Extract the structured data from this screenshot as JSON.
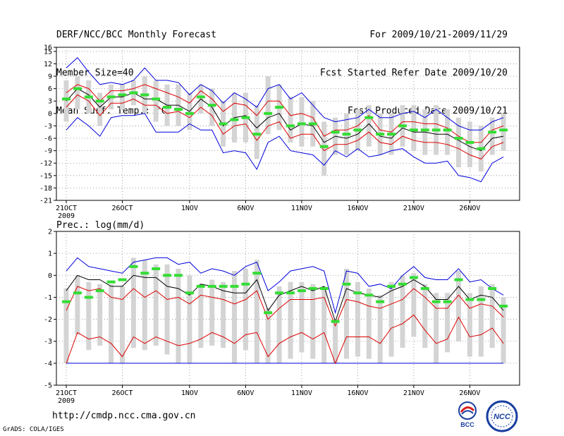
{
  "header": {
    "left": [
      "DERF/NCC/BCC Monthly Forecast",
      "Member Size=40",
      "Mean Surf. Temp.: °C"
    ],
    "right": [
      "For 2009/10/21-2009/11/29",
      "Fcst Started Refer Date 2009/10/20",
      "Fcst Produced Date 2009/10/21"
    ]
  },
  "footer": {
    "url": "http://cmdp.ncc.cma.gov.cn",
    "credit": "GrADS: COLA/IGES"
  },
  "logos": {
    "bcc_text": "BCC",
    "ncc_text": "NCC"
  },
  "colors": {
    "envelope": "#0000dd",
    "spread": "#dd0000",
    "mean": "#000000",
    "obs": "#33dd33",
    "box": "#d4d4d4",
    "grid": "#888888"
  },
  "chart_data": [
    {
      "type": "box-line",
      "title": "Mean Surf. Temp.: °C",
      "ylim": [
        -21,
        16
      ],
      "yticks": [
        16,
        15,
        12,
        9,
        6,
        3,
        0,
        -3,
        -6,
        -9,
        -12,
        -15,
        -18,
        -21
      ],
      "xticks": [
        {
          "day": 0,
          "label": "21OCT"
        },
        {
          "day": 5,
          "label": "26OCT"
        },
        {
          "day": 11,
          "label": "1NOV"
        },
        {
          "day": 16,
          "label": "6NOV"
        },
        {
          "day": 21,
          "label": "11NOV"
        },
        {
          "day": 26,
          "label": "16NOV"
        },
        {
          "day": 31,
          "label": "21NOV"
        },
        {
          "day": 36,
          "label": "26NOV"
        }
      ],
      "year_label": "2009",
      "series": {
        "max": [
          11,
          13.5,
          10,
          7,
          7.5,
          7,
          8,
          11,
          8,
          8,
          7.5,
          4.5,
          7,
          5.5,
          2.5,
          5,
          3.5,
          1.5,
          6,
          7,
          3.5,
          5,
          2,
          -1,
          -2,
          -1.5,
          -1,
          1,
          -1,
          -1,
          0,
          0.5,
          -1,
          1,
          -1,
          -3,
          -4,
          -4,
          -2,
          -1
        ],
        "p75": [
          5,
          7,
          6,
          3,
          5.5,
          5.5,
          6,
          7,
          6,
          5,
          4,
          2.5,
          5.5,
          3.5,
          0.5,
          2.5,
          2,
          -0.5,
          3,
          3,
          -0.5,
          0,
          -1,
          -5.5,
          -4,
          -4,
          -3,
          -0.5,
          -4,
          -4.5,
          -2,
          -2,
          -2.5,
          -2.5,
          -3.5,
          -5.5,
          -7,
          -7,
          -4,
          -3
        ],
        "mean": [
          3,
          6,
          4.5,
          1.5,
          4,
          4,
          5,
          3.5,
          3.5,
          2,
          2,
          0.5,
          3.5,
          1.5,
          -3,
          -1,
          -0.5,
          -3.5,
          -1,
          0,
          -4,
          -2.5,
          -3,
          -7,
          -5.5,
          -6,
          -5,
          -2.5,
          -5.5,
          -6,
          -3.5,
          -4.5,
          -4.5,
          -5,
          -5,
          -6.5,
          -8,
          -9,
          -6,
          -5.5
        ],
        "p25": [
          1.5,
          4.5,
          3,
          -0.5,
          2.5,
          2.5,
          3.5,
          2,
          2,
          0,
          0.5,
          -1,
          1.5,
          -0.5,
          -5,
          -3,
          -2.5,
          -6.5,
          -3,
          -2,
          -6,
          -5,
          -5,
          -9,
          -7.5,
          -7.5,
          -6.5,
          -4.5,
          -7,
          -7.5,
          -5.5,
          -6.5,
          -7,
          -7,
          -7.5,
          -8.5,
          -10,
          -11,
          -8,
          -7
        ],
        "min": [
          -4,
          -1,
          -3,
          -5.5,
          -1,
          -0.5,
          -0.5,
          0,
          -4.5,
          -4.5,
          -4.5,
          -2.5,
          -4,
          -4,
          -9.5,
          -9,
          -9.5,
          -13.5,
          -7,
          -5.5,
          -9,
          -9.5,
          -10,
          -12.5,
          -9,
          -10.5,
          -8.5,
          -10.5,
          -10,
          -9,
          -8.5,
          -10.5,
          -12,
          -12,
          -11.5,
          -15,
          -15.5,
          -16.5,
          -12,
          -10.5
        ],
        "obs": [
          3.5,
          6,
          4,
          3,
          4,
          4.5,
          5,
          4.5,
          3.5,
          1.5,
          1,
          0,
          4,
          2,
          -2.5,
          -1.5,
          -1,
          -5,
          0,
          1.5,
          -3,
          -2.5,
          -2.5,
          -8,
          -4.5,
          -5,
          -4,
          -1,
          -5,
          -5,
          -3,
          -4,
          -4,
          -4,
          -4,
          -6,
          -7,
          -8.5,
          -4.5,
          -4
        ],
        "box_top": [
          8,
          9,
          8,
          5,
          7,
          7,
          8,
          9,
          8,
          7,
          7,
          5,
          7,
          6,
          3,
          5,
          5,
          2,
          9,
          7,
          4,
          4,
          3,
          -2,
          -1,
          0,
          1,
          2,
          0,
          0,
          2,
          2,
          1,
          2,
          1,
          -1,
          -2,
          -3,
          -1,
          0
        ],
        "box_bot": [
          -2,
          1,
          0,
          -3,
          1,
          1,
          2,
          0,
          -2,
          -3,
          -3,
          -4,
          0,
          -3,
          -8,
          -7,
          -7,
          -11,
          -5,
          -4,
          -7,
          -8,
          -8,
          -15,
          -10,
          -10,
          -9,
          -8,
          -10,
          -10,
          -8,
          -9,
          -10,
          -10,
          -10,
          -13,
          -13,
          -14,
          -10,
          -9
        ]
      }
    },
    {
      "type": "box-line",
      "title": "Prec.: log(mm/d)",
      "ylim": [
        -5,
        2
      ],
      "yticks": [
        2,
        1,
        0,
        -1,
        -2,
        -3,
        -4,
        -5
      ],
      "xticks": [
        {
          "day": 0,
          "label": "21OCT"
        },
        {
          "day": 5,
          "label": "26OCT"
        },
        {
          "day": 11,
          "label": "1NOV"
        },
        {
          "day": 16,
          "label": "6NOV"
        },
        {
          "day": 21,
          "label": "11NOV"
        },
        {
          "day": 26,
          "label": "16NOV"
        },
        {
          "day": 31,
          "label": "21NOV"
        },
        {
          "day": 36,
          "label": "26NOV"
        }
      ],
      "year_label": "2009",
      "series": {
        "max": [
          0.2,
          0.8,
          0.4,
          0.3,
          0.2,
          0.1,
          0.6,
          0.7,
          0.8,
          0.8,
          0.5,
          0.6,
          0.1,
          0.3,
          0.2,
          0,
          0.4,
          0.6,
          -0.7,
          -0.3,
          0.2,
          0.3,
          0.4,
          0.2,
          -1.7,
          0.2,
          0.1,
          -0.5,
          -0.4,
          -0.6,
          0,
          0.4,
          -0.1,
          -0.2,
          -0.2,
          0.3,
          -0.3,
          -0.2,
          -0.6,
          -0.9
        ],
        "mean": [
          -0.7,
          0,
          -0.2,
          -0.2,
          -0.5,
          -0.5,
          0,
          -0.1,
          -0.1,
          -0.5,
          -0.6,
          -0.9,
          -0.4,
          -0.5,
          -0.7,
          -0.8,
          -0.8,
          -0.2,
          -1.6,
          -0.9,
          -0.7,
          -0.5,
          -0.7,
          -0.5,
          -2.1,
          -0.6,
          -0.8,
          -0.9,
          -1,
          -0.7,
          -0.5,
          -0.2,
          -0.5,
          -1.1,
          -1.1,
          -0.5,
          -1.1,
          -0.9,
          -1,
          -1.6
        ],
        "p25": [
          -1.6,
          -0.5,
          -0.7,
          -0.6,
          -1,
          -1.1,
          -0.6,
          -1,
          -0.7,
          -1.1,
          -1,
          -1.3,
          -0.9,
          -1,
          -1.1,
          -1.3,
          -1.1,
          -0.7,
          -2,
          -1.5,
          -1.1,
          -1.1,
          -1.1,
          -1,
          -2.3,
          -1.1,
          -1.2,
          -1.4,
          -1.5,
          -1.3,
          -1.1,
          -0.6,
          -1,
          -1.5,
          -1.5,
          -0.9,
          -1.5,
          -1.3,
          -1.4,
          -1.9
        ],
        "p10": [
          -4,
          -2.6,
          -2.9,
          -2.8,
          -3.1,
          -3.7,
          -2.8,
          -3.1,
          -2.8,
          -3,
          -3.2,
          -3.1,
          -2.9,
          -2.6,
          -2.8,
          -3.1,
          -2.7,
          -2.6,
          -3.7,
          -3.1,
          -2.8,
          -2.6,
          -2.9,
          -2.6,
          -4,
          -2.8,
          -2.8,
          -2.8,
          -3.1,
          -2.4,
          -2.2,
          -1.8,
          -2.5,
          -3.1,
          -2.9,
          -1.9,
          -2.8,
          -2.7,
          -2.4,
          -3.1
        ],
        "min": [
          -4,
          -4,
          -4,
          -4,
          -4,
          -4,
          -4,
          -4,
          -4,
          -4,
          -4,
          -4,
          -4,
          -4,
          -4,
          -4,
          -4,
          -4,
          -4,
          -4,
          -4,
          -4,
          -4,
          -4,
          -4,
          -4,
          -4,
          -4,
          -4,
          -4,
          -4,
          -4,
          -4,
          -4,
          -4,
          -4,
          -4,
          -4,
          -4,
          -4
        ],
        "obs": [
          -1.2,
          -0.8,
          -1,
          -0.7,
          -0.3,
          -0.2,
          0.4,
          0.1,
          0.3,
          0,
          0,
          -0.8,
          -0.5,
          -0.5,
          -0.5,
          -0.5,
          -0.4,
          0.1,
          -1.7,
          -0.8,
          -0.8,
          -0.7,
          -0.6,
          -0.6,
          -2.1,
          -0.4,
          -0.8,
          -0.9,
          -1.2,
          -0.5,
          -0.4,
          -0.1,
          -0.6,
          -1.2,
          -1.2,
          -0.2,
          -1.1,
          -1.1,
          -0.6,
          -1.4
        ],
        "box_top": [
          -0.6,
          0,
          -0.3,
          -0.4,
          -0.4,
          -0.5,
          0.8,
          0.7,
          0.5,
          0.5,
          0.3,
          0,
          -0.4,
          -0.2,
          -0.3,
          0.2,
          0.3,
          0.7,
          -1.5,
          -0.5,
          -0.3,
          -0.3,
          -0.4,
          -0.5,
          -2,
          0.3,
          -0.3,
          -0.6,
          -0.9,
          -0.3,
          0,
          0.1,
          -0.4,
          -0.8,
          -0.8,
          0.2,
          -0.8,
          -0.5,
          -0.4,
          -1
        ],
        "box_bot": [
          -4,
          -2.7,
          -3.4,
          -3.2,
          -4,
          -4,
          -3.3,
          -3.4,
          -3.2,
          -3.6,
          -4,
          -4,
          -3.3,
          -3.2,
          -3.3,
          -4,
          -3.4,
          -4,
          -4,
          -4,
          -3.8,
          -3.5,
          -3.8,
          -4,
          -4,
          -3.8,
          -3.7,
          -3.8,
          -4,
          -3.7,
          -3.3,
          -2.8,
          -3.3,
          -4,
          -3.5,
          -3,
          -3.7,
          -3.7,
          -3.3,
          -4
        ]
      }
    }
  ]
}
